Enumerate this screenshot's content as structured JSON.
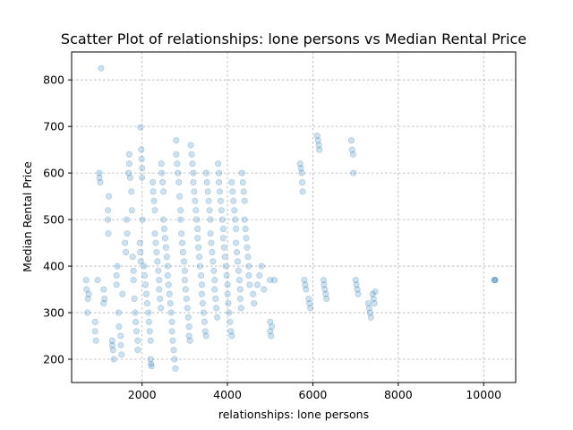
{
  "chart_data": {
    "type": "scatter",
    "title": "Scatter Plot of relationships: lone persons vs Median Rental Price",
    "xlabel": "relationships: lone persons",
    "ylabel": "Median Rental Price",
    "xlim": [
      350,
      10750
    ],
    "ylim": [
      150,
      860
    ],
    "xticks": [
      2000,
      4000,
      6000,
      8000,
      10000
    ],
    "yticks": [
      200,
      300,
      400,
      500,
      600,
      700,
      800
    ],
    "xtick_labels": [
      "2000",
      "4000",
      "6000",
      "8000",
      "10000"
    ],
    "ytick_labels": [
      "200",
      "300",
      "400",
      "500",
      "600",
      "700",
      "800"
    ],
    "grid": true,
    "color": "#1f77b4",
    "series": [
      {
        "points": [
          [
            1040,
            825
          ],
          [
            1960,
            698
          ],
          [
            690,
            370
          ],
          [
            700,
            350
          ],
          [
            720,
            300
          ],
          [
            730,
            330
          ],
          [
            750,
            340
          ],
          [
            900,
            260
          ],
          [
            900,
            280
          ],
          [
            920,
            240
          ],
          [
            960,
            370
          ],
          [
            1000,
            590
          ],
          [
            1000,
            600
          ],
          [
            1020,
            580
          ],
          [
            1100,
            350
          ],
          [
            1100,
            320
          ],
          [
            1120,
            330
          ],
          [
            1200,
            520
          ],
          [
            1200,
            500
          ],
          [
            1210,
            470
          ],
          [
            1220,
            550
          ],
          [
            1300,
            240
          ],
          [
            1300,
            230
          ],
          [
            1320,
            220
          ],
          [
            1340,
            200
          ],
          [
            1400,
            380
          ],
          [
            1400,
            360
          ],
          [
            1420,
            400
          ],
          [
            1450,
            300
          ],
          [
            1460,
            270
          ],
          [
            1500,
            250
          ],
          [
            1500,
            230
          ],
          [
            1520,
            210
          ],
          [
            1540,
            340
          ],
          [
            1600,
            450
          ],
          [
            1620,
            430
          ],
          [
            1640,
            500
          ],
          [
            1650,
            470
          ],
          [
            1680,
            600
          ],
          [
            1700,
            640
          ],
          [
            1700,
            620
          ],
          [
            1720,
            590
          ],
          [
            1750,
            560
          ],
          [
            1760,
            520
          ],
          [
            1780,
            420
          ],
          [
            1800,
            390
          ],
          [
            1800,
            370
          ],
          [
            1820,
            330
          ],
          [
            1840,
            300
          ],
          [
            1850,
            280
          ],
          [
            1870,
            260
          ],
          [
            1900,
            240
          ],
          [
            1900,
            220
          ],
          [
            1950,
            450
          ],
          [
            1960,
            430
          ],
          [
            1970,
            410
          ],
          [
            1980,
            650
          ],
          [
            1990,
            630
          ],
          [
            2000,
            610
          ],
          [
            2000,
            590
          ],
          [
            2010,
            500
          ],
          [
            2050,
            400
          ],
          [
            2060,
            380
          ],
          [
            2080,
            360
          ],
          [
            2100,
            340
          ],
          [
            2120,
            320
          ],
          [
            2150,
            300
          ],
          [
            2160,
            280
          ],
          [
            2180,
            260
          ],
          [
            2200,
            240
          ],
          [
            2200,
            200
          ],
          [
            2210,
            190
          ],
          [
            2220,
            185
          ],
          [
            2250,
            580
          ],
          [
            2260,
            560
          ],
          [
            2280,
            540
          ],
          [
            2300,
            520
          ],
          [
            2300,
            470
          ],
          [
            2320,
            450
          ],
          [
            2340,
            430
          ],
          [
            2360,
            410
          ],
          [
            2380,
            390
          ],
          [
            2400,
            370
          ],
          [
            2400,
            350
          ],
          [
            2420,
            330
          ],
          [
            2440,
            310
          ],
          [
            2450,
            620
          ],
          [
            2460,
            600
          ],
          [
            2480,
            580
          ],
          [
            2500,
            560
          ],
          [
            2500,
            500
          ],
          [
            2520,
            480
          ],
          [
            2540,
            460
          ],
          [
            2560,
            440
          ],
          [
            2580,
            420
          ],
          [
            2600,
            400
          ],
          [
            2600,
            380
          ],
          [
            2620,
            360
          ],
          [
            2640,
            340
          ],
          [
            2660,
            320
          ],
          [
            2680,
            300
          ],
          [
            2700,
            280
          ],
          [
            2700,
            260
          ],
          [
            2720,
            240
          ],
          [
            2740,
            220
          ],
          [
            2760,
            200
          ],
          [
            2780,
            180
          ],
          [
            2800,
            670
          ],
          [
            2800,
            640
          ],
          [
            2820,
            620
          ],
          [
            2840,
            600
          ],
          [
            2860,
            580
          ],
          [
            2880,
            550
          ],
          [
            2900,
            520
          ],
          [
            2900,
            500
          ],
          [
            2920,
            470
          ],
          [
            2940,
            450
          ],
          [
            2960,
            430
          ],
          [
            2980,
            410
          ],
          [
            3000,
            390
          ],
          [
            3000,
            370
          ],
          [
            3020,
            350
          ],
          [
            3040,
            330
          ],
          [
            3060,
            310
          ],
          [
            3080,
            290
          ],
          [
            3100,
            270
          ],
          [
            3100,
            250
          ],
          [
            3120,
            240
          ],
          [
            3140,
            660
          ],
          [
            3160,
            640
          ],
          [
            3180,
            620
          ],
          [
            3200,
            600
          ],
          [
            3200,
            580
          ],
          [
            3220,
            560
          ],
          [
            3240,
            540
          ],
          [
            3260,
            520
          ],
          [
            3280,
            500
          ],
          [
            3300,
            480
          ],
          [
            3300,
            460
          ],
          [
            3320,
            440
          ],
          [
            3340,
            420
          ],
          [
            3360,
            400
          ],
          [
            3380,
            380
          ],
          [
            3400,
            360
          ],
          [
            3400,
            340
          ],
          [
            3420,
            320
          ],
          [
            3440,
            300
          ],
          [
            3460,
            280
          ],
          [
            3480,
            260
          ],
          [
            3500,
            250
          ],
          [
            3500,
            600
          ],
          [
            3520,
            580
          ],
          [
            3540,
            560
          ],
          [
            3560,
            540
          ],
          [
            3580,
            520
          ],
          [
            3600,
            500
          ],
          [
            3600,
            470
          ],
          [
            3620,
            450
          ],
          [
            3640,
            430
          ],
          [
            3660,
            410
          ],
          [
            3680,
            390
          ],
          [
            3700,
            370
          ],
          [
            3700,
            350
          ],
          [
            3720,
            330
          ],
          [
            3740,
            310
          ],
          [
            3760,
            290
          ],
          [
            3780,
            620
          ],
          [
            3800,
            600
          ],
          [
            3800,
            580
          ],
          [
            3820,
            560
          ],
          [
            3840,
            540
          ],
          [
            3860,
            520
          ],
          [
            3880,
            500
          ],
          [
            3900,
            480
          ],
          [
            3900,
            460
          ],
          [
            3920,
            440
          ],
          [
            3940,
            420
          ],
          [
            3960,
            400
          ],
          [
            3980,
            380
          ],
          [
            4000,
            360
          ],
          [
            4000,
            340
          ],
          [
            4020,
            320
          ],
          [
            4040,
            300
          ],
          [
            4060,
            280
          ],
          [
            4080,
            260
          ],
          [
            4100,
            250
          ],
          [
            4100,
            580
          ],
          [
            4120,
            560
          ],
          [
            4140,
            540
          ],
          [
            4160,
            520
          ],
          [
            4180,
            500
          ],
          [
            4200,
            480
          ],
          [
            4200,
            450
          ],
          [
            4220,
            430
          ],
          [
            4240,
            410
          ],
          [
            4260,
            390
          ],
          [
            4280,
            370
          ],
          [
            4300,
            350
          ],
          [
            4300,
            330
          ],
          [
            4320,
            310
          ],
          [
            4340,
            600
          ],
          [
            4360,
            580
          ],
          [
            4380,
            560
          ],
          [
            4400,
            540
          ],
          [
            4400,
            500
          ],
          [
            4420,
            480
          ],
          [
            4440,
            460
          ],
          [
            4460,
            440
          ],
          [
            4480,
            420
          ],
          [
            4500,
            400
          ],
          [
            4500,
            380
          ],
          [
            4520,
            360
          ],
          [
            4600,
            340
          ],
          [
            4620,
            320
          ],
          [
            4700,
            360
          ],
          [
            4750,
            380
          ],
          [
            4800,
            400
          ],
          [
            4850,
            350
          ],
          [
            5000,
            370
          ],
          [
            5000,
            280
          ],
          [
            5000,
            260
          ],
          [
            5020,
            250
          ],
          [
            5040,
            270
          ],
          [
            5100,
            370
          ],
          [
            5700,
            620
          ],
          [
            5720,
            610
          ],
          [
            5740,
            600
          ],
          [
            5750,
            580
          ],
          [
            5760,
            560
          ],
          [
            5800,
            370
          ],
          [
            5820,
            360
          ],
          [
            5840,
            350
          ],
          [
            5900,
            330
          ],
          [
            5920,
            320
          ],
          [
            5940,
            310
          ],
          [
            6100,
            680
          ],
          [
            6120,
            670
          ],
          [
            6140,
            660
          ],
          [
            6150,
            650
          ],
          [
            6250,
            370
          ],
          [
            6260,
            360
          ],
          [
            6280,
            350
          ],
          [
            6300,
            340
          ],
          [
            6320,
            330
          ],
          [
            6900,
            670
          ],
          [
            6920,
            650
          ],
          [
            6940,
            640
          ],
          [
            6950,
            600
          ],
          [
            7000,
            370
          ],
          [
            7020,
            360
          ],
          [
            7040,
            350
          ],
          [
            7060,
            340
          ],
          [
            7300,
            320
          ],
          [
            7320,
            310
          ],
          [
            7340,
            300
          ],
          [
            7360,
            290
          ],
          [
            7400,
            340
          ],
          [
            7420,
            330
          ],
          [
            7440,
            320
          ],
          [
            7460,
            345
          ],
          [
            10250,
            370
          ],
          [
            10260,
            370
          ],
          [
            10270,
            370
          ]
        ]
      }
    ]
  }
}
